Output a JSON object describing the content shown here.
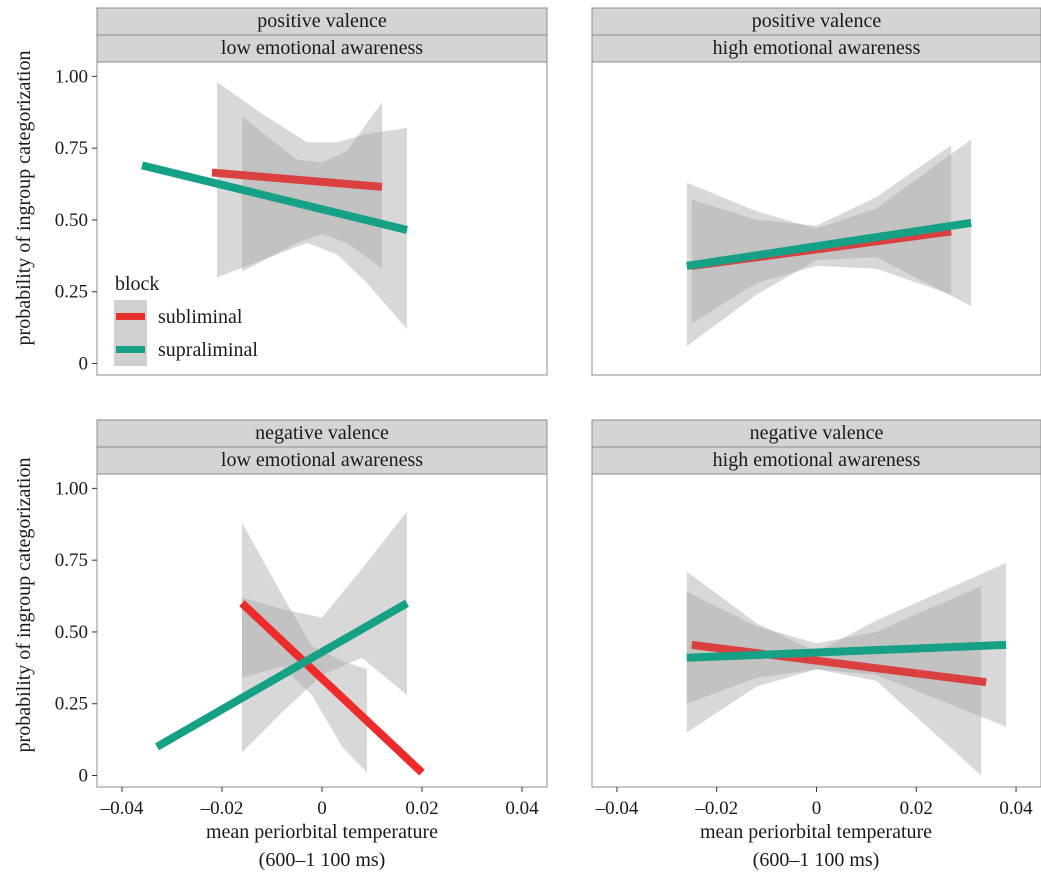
{
  "chart_data": {
    "type": "line",
    "xlabel": [
      "mean periorbital temperature",
      "(600–1 100 ms)"
    ],
    "ylabel": "probability of ingroup categorization",
    "xlim": [
      -0.045,
      0.045
    ],
    "ylim": [
      -0.04,
      1.05
    ],
    "x_ticks": [
      {
        "value": -0.04,
        "label": "–0.04"
      },
      {
        "value": -0.02,
        "label": "–0.02"
      },
      {
        "value": 0,
        "label": "0"
      },
      {
        "value": 0.02,
        "label": "0.02"
      },
      {
        "value": 0.04,
        "label": "0.04"
      }
    ],
    "y_ticks": [
      {
        "value": 0,
        "label": "0"
      },
      {
        "value": 0.25,
        "label": "0.25"
      },
      {
        "value": 0.5,
        "label": "0.50"
      },
      {
        "value": 0.75,
        "label": "0.75"
      },
      {
        "value": 1.0,
        "label": "1.00"
      }
    ],
    "legend": {
      "title": "block",
      "placement": "inside-bottom-left of top-left panel",
      "entries": [
        {
          "name": "subliminal",
          "color": "#e8302e"
        },
        {
          "name": "supraliminal",
          "color": "#16a085"
        }
      ]
    },
    "facets": [
      {
        "strip": [
          "positive valence",
          "low emotional awareness"
        ],
        "series": [
          {
            "name": "subliminal",
            "color": "#d9403f",
            "x": [
              -0.022,
              0.012
            ],
            "y": [
              0.665,
              0.615
            ],
            "band": {
              "x": [
                -0.016,
                -0.005,
                0.0,
                0.005,
                0.012
              ],
              "lower": [
                0.32,
                0.42,
                0.45,
                0.42,
                0.33
              ],
              "upper": [
                0.86,
                0.71,
                0.7,
                0.74,
                0.91
              ]
            }
          },
          {
            "name": "supraliminal",
            "color": "#16a085",
            "x": [
              -0.036,
              0.017
            ],
            "y": [
              0.69,
              0.465
            ],
            "band": {
              "x": [
                -0.021,
                -0.012,
                -0.003,
                0.003,
                0.009,
                0.017
              ],
              "lower": [
                0.3,
                0.36,
                0.42,
                0.38,
                0.28,
                0.12
              ],
              "upper": [
                0.98,
                0.87,
                0.77,
                0.77,
                0.8,
                0.82
              ]
            }
          }
        ]
      },
      {
        "strip": [
          "positive valence",
          "high emotional awareness"
        ],
        "series": [
          {
            "name": "subliminal",
            "color": "#d9403f",
            "x": [
              -0.025,
              0.027
            ],
            "y": [
              0.34,
              0.46
            ],
            "band": {
              "x": [
                -0.025,
                -0.012,
                0.0,
                0.012,
                0.027
              ],
              "lower": [
                0.14,
                0.28,
                0.34,
                0.33,
                0.24
              ],
              "upper": [
                0.57,
                0.5,
                0.48,
                0.58,
                0.76
              ]
            }
          },
          {
            "name": "supraliminal",
            "color": "#16a085",
            "x": [
              -0.026,
              0.031
            ],
            "y": [
              0.34,
              0.49
            ],
            "band": {
              "x": [
                -0.026,
                -0.012,
                0.0,
                0.012,
                0.031
              ],
              "lower": [
                0.06,
                0.24,
                0.36,
                0.37,
                0.2
              ],
              "upper": [
                0.63,
                0.53,
                0.47,
                0.54,
                0.78
              ]
            }
          }
        ]
      },
      {
        "strip": [
          "negative valence",
          "low emotional awareness"
        ],
        "series": [
          {
            "name": "subliminal",
            "color": "#ee2b2b",
            "x": [
              -0.016,
              0.02
            ],
            "y": [
              0.6,
              0.01
            ],
            "band": {
              "x": [
                -0.016,
                -0.008,
                -0.002,
                0.004,
                0.009
              ],
              "lower": [
                0.34,
                0.38,
                0.28,
                0.1,
                0.01
              ],
              "upper": [
                0.88,
                0.63,
                0.45,
                0.4,
                0.37
              ]
            }
          },
          {
            "name": "supraliminal",
            "color": "#16a085",
            "x": [
              -0.033,
              0.017
            ],
            "y": [
              0.1,
              0.6
            ],
            "band": {
              "x": [
                -0.016,
                -0.008,
                0.0,
                0.008,
                0.017
              ],
              "lower": [
                0.08,
                0.22,
                0.35,
                0.41,
                0.28
              ],
              "upper": [
                0.62,
                0.58,
                0.55,
                0.72,
                0.92
              ]
            }
          }
        ]
      },
      {
        "strip": [
          "negative valence",
          "high emotional awareness"
        ],
        "series": [
          {
            "name": "subliminal",
            "color": "#d9403f",
            "x": [
              -0.025,
              0.034
            ],
            "y": [
              0.455,
              0.325
            ],
            "band": {
              "x": [
                -0.026,
                -0.012,
                0.0,
                0.012,
                0.033
              ],
              "lower": [
                0.25,
                0.34,
                0.37,
                0.33,
                0.0
              ],
              "upper": [
                0.64,
                0.52,
                0.46,
                0.5,
                0.66
              ]
            }
          },
          {
            "name": "supraliminal",
            "color": "#16a085",
            "x": [
              -0.026,
              0.038
            ],
            "y": [
              0.41,
              0.455
            ],
            "band": {
              "x": [
                -0.026,
                -0.012,
                0.0,
                0.012,
                0.038
              ],
              "lower": [
                0.15,
                0.31,
                0.37,
                0.35,
                0.17
              ],
              "upper": [
                0.71,
                0.53,
                0.43,
                0.54,
                0.74
              ]
            }
          }
        ]
      }
    ]
  }
}
